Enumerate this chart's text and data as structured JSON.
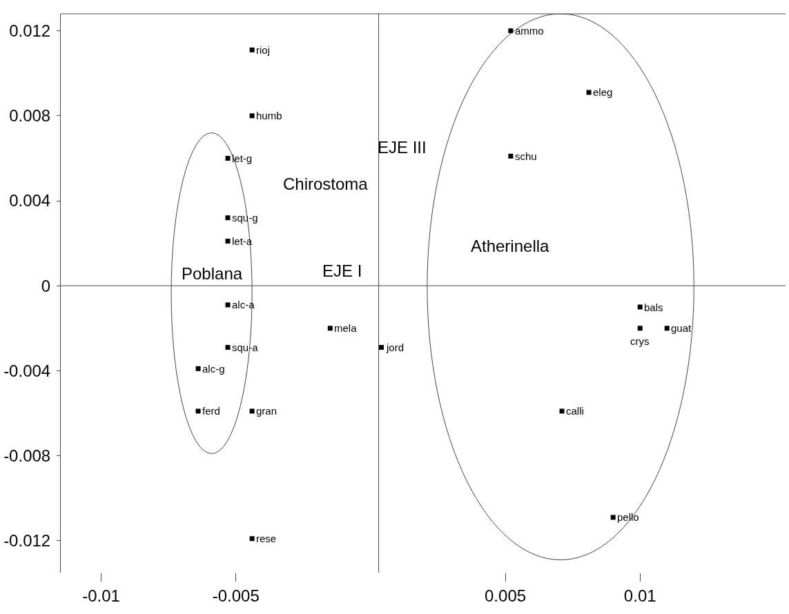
{
  "chart_data": {
    "type": "scatter",
    "xlabel": "EJE I",
    "ylabel": "EJE III",
    "x": [
      -0.0044,
      -0.0044,
      -0.0053,
      -0.0053,
      -0.0053,
      -0.0053,
      -0.0053,
      -0.0064,
      -0.0064,
      -0.0044,
      -0.0044,
      -0.0015,
      0.0004,
      0.0052,
      0.0081,
      0.0052,
      0.01,
      0.01,
      0.011,
      0.0071,
      0.009
    ],
    "series": [
      {
        "color": "#000000",
        "values": [
          0.0111,
          0.008,
          0.006,
          0.0032,
          0.0021,
          -0.0009,
          -0.0029,
          -0.0039,
          -0.0059,
          -0.0059,
          -0.0119,
          -0.002,
          -0.0029,
          0.012,
          0.0091,
          0.0061,
          -0.001,
          -0.002,
          -0.002,
          -0.0059,
          -0.0109
        ]
      }
    ],
    "annotations": [
      {
        "text": "rioj",
        "x": -0.0044,
        "y": 0.0111
      },
      {
        "text": "humb",
        "x": -0.0044,
        "y": 0.008
      },
      {
        "text": "let-g",
        "x": -0.0053,
        "y": 0.006
      },
      {
        "text": "squ-g",
        "x": -0.0053,
        "y": 0.0032
      },
      {
        "text": "let-a",
        "x": -0.0053,
        "y": 0.0021
      },
      {
        "text": "alc-a",
        "x": -0.0053,
        "y": -0.0009
      },
      {
        "text": "squ-a",
        "x": -0.0053,
        "y": -0.0029
      },
      {
        "text": "alc-g",
        "x": -0.0064,
        "y": -0.0039
      },
      {
        "text": "ferd",
        "x": -0.0064,
        "y": -0.0059
      },
      {
        "text": "gran",
        "x": -0.0044,
        "y": -0.0059
      },
      {
        "text": "rese",
        "x": -0.0044,
        "y": -0.0119
      },
      {
        "text": "mela",
        "x": -0.0015,
        "y": -0.002
      },
      {
        "text": "jord",
        "x": 0.0004,
        "y": -0.0029
      },
      {
        "text": "ammo",
        "x": 0.0052,
        "y": 0.012
      },
      {
        "text": "eleg",
        "x": 0.0081,
        "y": 0.0091
      },
      {
        "text": "schu",
        "x": 0.0052,
        "y": 0.0061
      },
      {
        "text": "bals",
        "x": 0.01,
        "y": -0.001
      },
      {
        "text": "crys",
        "x": 0.01,
        "y": -0.002
      },
      {
        "text": "guat",
        "x": 0.011,
        "y": -0.002
      },
      {
        "text": "calli",
        "x": 0.0071,
        "y": -0.0059
      },
      {
        "text": "pello",
        "x": 0.009,
        "y": -0.0109
      },
      "Chirostoma",
      "Poblana",
      "Atherinella"
    ],
    "xlim": [
      -0.0115,
      0.0154
    ],
    "ylim": [
      -0.0135,
      0.0128
    ],
    "xticks": [
      -0.01,
      -0.005,
      0.005,
      0.01
    ],
    "yticks": [
      0.012,
      0.008,
      0.004,
      0,
      -0.004,
      -0.008,
      -0.012
    ],
    "ref_lines": [
      {
        "axis": "y",
        "value": 0
      },
      {
        "axis": "x",
        "value": 0.0003
      }
    ],
    "grid": false,
    "marker": "square"
  }
}
